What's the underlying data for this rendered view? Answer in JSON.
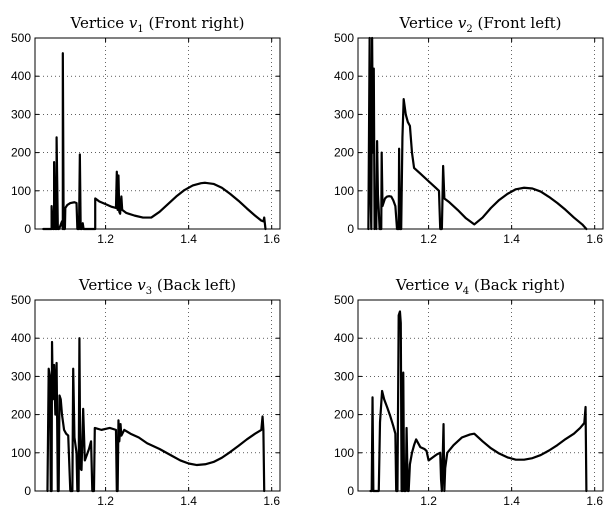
{
  "chart_data": [
    {
      "type": "line",
      "title": {
        "prefix": "Vertice ",
        "var": "v",
        "sub": "1",
        "suffix": " (Front right)"
      },
      "xlim": [
        1.03,
        1.62
      ],
      "ylim": [
        0,
        500
      ],
      "xticks": [
        1.2,
        1.4,
        1.6
      ],
      "xtick_labels": [
        "1.2",
        "1.4",
        "1.6"
      ],
      "yticks": [
        0,
        100,
        200,
        300,
        400,
        500
      ],
      "ytick_labels": [
        "0",
        "100",
        "200",
        "300",
        "400",
        "500"
      ],
      "grid": true,
      "series": [
        {
          "values": [
            [
              1.05,
              0
            ],
            [
              1.07,
              0
            ],
            [
              1.07,
              60
            ],
            [
              1.073,
              0
            ],
            [
              1.076,
              0
            ],
            [
              1.076,
              175
            ],
            [
              1.079,
              0
            ],
            [
              1.082,
              0
            ],
            [
              1.082,
              240
            ],
            [
              1.085,
              0
            ],
            [
              1.088,
              0
            ],
            [
              1.095,
              20
            ],
            [
              1.097,
              0
            ],
            [
              1.097,
              460
            ],
            [
              1.099,
              0
            ],
            [
              1.102,
              0
            ],
            [
              1.103,
              55
            ],
            [
              1.108,
              63
            ],
            [
              1.115,
              68
            ],
            [
              1.125,
              70
            ],
            [
              1.13,
              68
            ],
            [
              1.132,
              0
            ],
            [
              1.136,
              0
            ],
            [
              1.138,
              195
            ],
            [
              1.14,
              0
            ],
            [
              1.143,
              0
            ],
            [
              1.145,
              15
            ],
            [
              1.147,
              0
            ],
            [
              1.175,
              0
            ],
            [
              1.175,
              80
            ],
            [
              1.185,
              72
            ],
            [
              1.2,
              65
            ],
            [
              1.215,
              58
            ],
            [
              1.225,
              55
            ],
            [
              1.227,
              150
            ],
            [
              1.229,
              50
            ],
            [
              1.231,
              140
            ],
            [
              1.233,
              45
            ],
            [
              1.235,
              40
            ],
            [
              1.238,
              85
            ],
            [
              1.24,
              50
            ],
            [
              1.25,
              42
            ],
            [
              1.27,
              35
            ],
            [
              1.29,
              30
            ],
            [
              1.31,
              30
            ],
            [
              1.33,
              45
            ],
            [
              1.35,
              65
            ],
            [
              1.37,
              85
            ],
            [
              1.39,
              102
            ],
            [
              1.41,
              114
            ],
            [
              1.43,
              120
            ],
            [
              1.44,
              121
            ],
            [
              1.46,
              118
            ],
            [
              1.48,
              108
            ],
            [
              1.5,
              92
            ],
            [
              1.52,
              74
            ],
            [
              1.54,
              54
            ],
            [
              1.56,
              35
            ],
            [
              1.575,
              22
            ],
            [
              1.58,
              20
            ],
            [
              1.582,
              30
            ],
            [
              1.585,
              0
            ]
          ]
        }
      ]
    },
    {
      "type": "line",
      "title": {
        "prefix": "Vertice ",
        "var": "v",
        "sub": "2",
        "suffix": " (Front left)"
      },
      "xlim": [
        1.03,
        1.62
      ],
      "ylim": [
        0,
        500
      ],
      "xticks": [
        1.2,
        1.4,
        1.6
      ],
      "xtick_labels": [
        "1.2",
        "1.4",
        "1.6"
      ],
      "yticks": [
        0,
        100,
        200,
        300,
        400,
        500
      ],
      "ytick_labels": [
        "0",
        "100",
        "200",
        "300",
        "400",
        "500"
      ],
      "grid": true,
      "series": [
        {
          "values": [
            [
              1.055,
              0
            ],
            [
              1.058,
              500
            ],
            [
              1.06,
              100
            ],
            [
              1.062,
              0
            ],
            [
              1.064,
              500
            ],
            [
              1.066,
              200
            ],
            [
              1.068,
              420
            ],
            [
              1.07,
              0
            ],
            [
              1.072,
              100
            ],
            [
              1.074,
              0
            ],
            [
              1.076,
              230
            ],
            [
              1.078,
              90
            ],
            [
              1.08,
              50
            ],
            [
              1.082,
              0
            ],
            [
              1.086,
              0
            ],
            [
              1.087,
              200
            ],
            [
              1.089,
              60
            ],
            [
              1.095,
              80
            ],
            [
              1.1,
              85
            ],
            [
              1.105,
              86
            ],
            [
              1.11,
              85
            ],
            [
              1.115,
              75
            ],
            [
              1.12,
              60
            ],
            [
              1.124,
              0
            ],
            [
              1.128,
              0
            ],
            [
              1.129,
              210
            ],
            [
              1.131,
              0
            ],
            [
              1.134,
              0
            ],
            [
              1.137,
              240
            ],
            [
              1.14,
              340
            ],
            [
              1.145,
              300
            ],
            [
              1.15,
              280
            ],
            [
              1.155,
              270
            ],
            [
              1.16,
              200
            ],
            [
              1.165,
              160
            ],
            [
              1.18,
              145
            ],
            [
              1.2,
              125
            ],
            [
              1.215,
              110
            ],
            [
              1.225,
              100
            ],
            [
              1.228,
              0
            ],
            [
              1.232,
              0
            ],
            [
              1.235,
              165
            ],
            [
              1.238,
              80
            ],
            [
              1.25,
              70
            ],
            [
              1.27,
              50
            ],
            [
              1.29,
              28
            ],
            [
              1.31,
              12
            ],
            [
              1.33,
              30
            ],
            [
              1.35,
              55
            ],
            [
              1.37,
              76
            ],
            [
              1.39,
              92
            ],
            [
              1.41,
              104
            ],
            [
              1.43,
              108
            ],
            [
              1.45,
              106
            ],
            [
              1.47,
              98
            ],
            [
              1.49,
              84
            ],
            [
              1.51,
              68
            ],
            [
              1.53,
              50
            ],
            [
              1.55,
              30
            ],
            [
              1.57,
              12
            ],
            [
              1.58,
              0
            ]
          ]
        }
      ]
    },
    {
      "type": "line",
      "title": {
        "prefix": "Vertice ",
        "var": "v",
        "sub": "3",
        "suffix": " (Back left)"
      },
      "xlim": [
        1.03,
        1.62
      ],
      "ylim": [
        0,
        500
      ],
      "xticks": [
        1.2,
        1.4,
        1.6
      ],
      "xtick_labels": [
        "1.2",
        "1.4",
        "1.6"
      ],
      "yticks": [
        0,
        100,
        200,
        300,
        400,
        500
      ],
      "ytick_labels": [
        "0",
        "100",
        "200",
        "300",
        "400",
        "500"
      ],
      "grid": true,
      "series": [
        {
          "values": [
            [
              1.06,
              0
            ],
            [
              1.063,
              320
            ],
            [
              1.066,
              300
            ],
            [
              1.068,
              0
            ],
            [
              1.07,
              0
            ],
            [
              1.071,
              390
            ],
            [
              1.073,
              240
            ],
            [
              1.076,
              330
            ],
            [
              1.079,
              200
            ],
            [
              1.082,
              335
            ],
            [
              1.085,
              0
            ],
            [
              1.087,
              0
            ],
            [
              1.089,
              250
            ],
            [
              1.092,
              240
            ],
            [
              1.095,
              200
            ],
            [
              1.1,
              160
            ],
            [
              1.105,
              150
            ],
            [
              1.11,
              145
            ],
            [
              1.115,
              0
            ],
            [
              1.12,
              0
            ],
            [
              1.122,
              320
            ],
            [
              1.125,
              140
            ],
            [
              1.13,
              100
            ],
            [
              1.132,
              0
            ],
            [
              1.135,
              0
            ],
            [
              1.137,
              400
            ],
            [
              1.139,
              60
            ],
            [
              1.142,
              55
            ],
            [
              1.146,
              215
            ],
            [
              1.15,
              80
            ],
            [
              1.16,
              110
            ],
            [
              1.165,
              130
            ],
            [
              1.168,
              0
            ],
            [
              1.172,
              0
            ],
            [
              1.174,
              165
            ],
            [
              1.19,
              160
            ],
            [
              1.21,
              165
            ],
            [
              1.225,
              160
            ],
            [
              1.227,
              0
            ],
            [
              1.229,
              0
            ],
            [
              1.231,
              185
            ],
            [
              1.233,
              130
            ],
            [
              1.236,
              175
            ],
            [
              1.238,
              145
            ],
            [
              1.245,
              160
            ],
            [
              1.26,
              150
            ],
            [
              1.28,
              140
            ],
            [
              1.3,
              125
            ],
            [
              1.33,
              110
            ],
            [
              1.36,
              92
            ],
            [
              1.38,
              80
            ],
            [
              1.4,
              72
            ],
            [
              1.42,
              68
            ],
            [
              1.44,
              70
            ],
            [
              1.46,
              76
            ],
            [
              1.48,
              87
            ],
            [
              1.5,
              102
            ],
            [
              1.52,
              118
            ],
            [
              1.54,
              135
            ],
            [
              1.56,
              150
            ],
            [
              1.575,
              160
            ],
            [
              1.578,
              195
            ],
            [
              1.58,
              160
            ],
            [
              1.582,
              0
            ]
          ]
        }
      ]
    },
    {
      "type": "line",
      "title": {
        "prefix": "Vertice ",
        "var": "v",
        "sub": "4",
        "suffix": " (Back right)"
      },
      "xlim": [
        1.03,
        1.62
      ],
      "ylim": [
        0,
        500
      ],
      "xticks": [
        1.2,
        1.4,
        1.6
      ],
      "xtick_labels": [
        "1.2",
        "1.4",
        "1.6"
      ],
      "yticks": [
        0,
        100,
        200,
        300,
        400,
        500
      ],
      "ytick_labels": [
        "0",
        "100",
        "200",
        "300",
        "400",
        "500"
      ],
      "grid": true,
      "series": [
        {
          "values": [
            [
              1.06,
              0
            ],
            [
              1.063,
              0
            ],
            [
              1.065,
              245
            ],
            [
              1.067,
              0
            ],
            [
              1.08,
              0
            ],
            [
              1.083,
              180
            ],
            [
              1.088,
              262
            ],
            [
              1.093,
              240
            ],
            [
              1.1,
              220
            ],
            [
              1.108,
              195
            ],
            [
              1.115,
              170
            ],
            [
              1.12,
              150
            ],
            [
              1.122,
              0
            ],
            [
              1.125,
              0
            ],
            [
              1.128,
              460
            ],
            [
              1.131,
              470
            ],
            [
              1.133,
              440
            ],
            [
              1.135,
              0
            ],
            [
              1.137,
              0
            ],
            [
              1.139,
              310
            ],
            [
              1.141,
              0
            ],
            [
              1.145,
              0
            ],
            [
              1.147,
              165
            ],
            [
              1.15,
              0
            ],
            [
              1.152,
              0
            ],
            [
              1.155,
              70
            ],
            [
              1.16,
              100
            ],
            [
              1.165,
              120
            ],
            [
              1.17,
              135
            ],
            [
              1.18,
              115
            ],
            [
              1.19,
              110
            ],
            [
              1.195,
              105
            ],
            [
              1.2,
              80
            ],
            [
              1.21,
              88
            ],
            [
              1.22,
              96
            ],
            [
              1.228,
              100
            ],
            [
              1.23,
              30
            ],
            [
              1.232,
              0
            ],
            [
              1.236,
              175
            ],
            [
              1.238,
              0
            ],
            [
              1.24,
              60
            ],
            [
              1.245,
              100
            ],
            [
              1.26,
              120
            ],
            [
              1.28,
              140
            ],
            [
              1.3,
              148
            ],
            [
              1.31,
              150
            ],
            [
              1.33,
              130
            ],
            [
              1.35,
              112
            ],
            [
              1.37,
              98
            ],
            [
              1.39,
              88
            ],
            [
              1.41,
              82
            ],
            [
              1.43,
              82
            ],
            [
              1.45,
              86
            ],
            [
              1.47,
              94
            ],
            [
              1.49,
              106
            ],
            [
              1.51,
              120
            ],
            [
              1.53,
              136
            ],
            [
              1.55,
              150
            ],
            [
              1.565,
              165
            ],
            [
              1.575,
              178
            ],
            [
              1.578,
              220
            ],
            [
              1.58,
              0
            ]
          ]
        }
      ]
    }
  ]
}
